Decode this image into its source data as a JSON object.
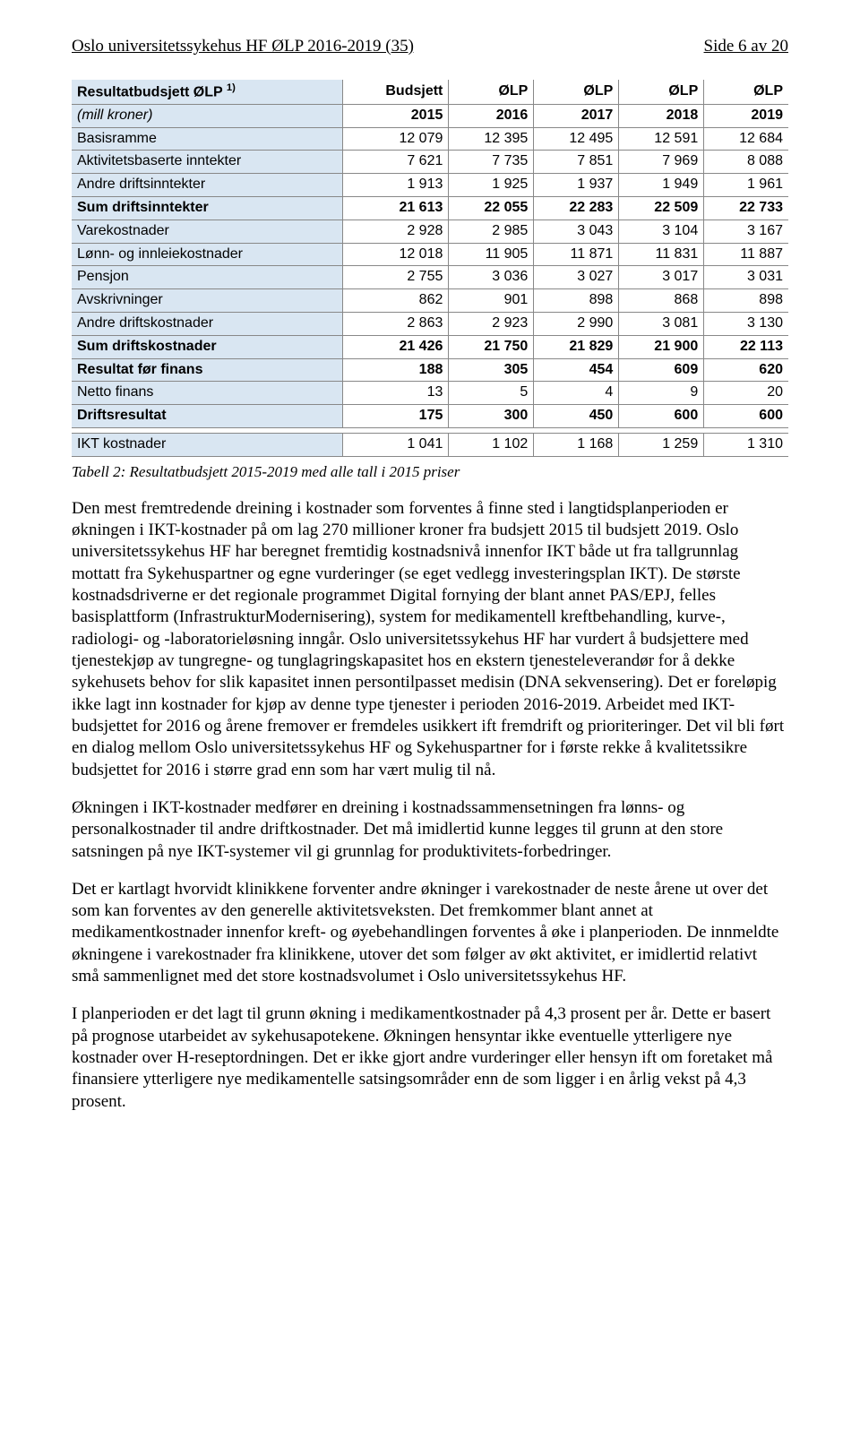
{
  "header": {
    "left": "Oslo universitetssykehus HF ØLP 2016-2019 (35)",
    "right": "Side 6 av 20"
  },
  "table": {
    "title_row": {
      "label_line1": "Resultatbudsjett ØLP ",
      "label_sup": "1)",
      "label_line2": "(mill kroner)",
      "col_labels_top": [
        "Budsjett",
        "ØLP",
        "ØLP",
        "ØLP",
        "ØLP"
      ],
      "col_labels_bottom": [
        "2015",
        "2016",
        "2017",
        "2018",
        "2019"
      ]
    },
    "rows": [
      {
        "label": "Basisramme",
        "vals": [
          "12 079",
          "12 395",
          "12 495",
          "12 591",
          "12 684"
        ],
        "bold": false,
        "shaded": true
      },
      {
        "label": "Aktivitetsbaserte inntekter",
        "vals": [
          "7 621",
          "7 735",
          "7 851",
          "7 969",
          "8 088"
        ],
        "bold": false,
        "shaded": true
      },
      {
        "label": "Andre driftsinntekter",
        "vals": [
          "1 913",
          "1 925",
          "1 937",
          "1 949",
          "1 961"
        ],
        "bold": false,
        "shaded": true
      },
      {
        "label": "Sum driftsinntekter",
        "vals": [
          "21 613",
          "22 055",
          "22 283",
          "22 509",
          "22 733"
        ],
        "bold": true,
        "shaded": true
      },
      {
        "label": "Varekostnader",
        "vals": [
          "2 928",
          "2 985",
          "3 043",
          "3 104",
          "3 167"
        ],
        "bold": false,
        "shaded": true
      },
      {
        "label": "Lønn- og innleiekostnader",
        "vals": [
          "12 018",
          "11 905",
          "11 871",
          "11 831",
          "11 887"
        ],
        "bold": false,
        "shaded": true
      },
      {
        "label": "Pensjon",
        "vals": [
          "2 755",
          "3 036",
          "3 027",
          "3 017",
          "3 031"
        ],
        "bold": false,
        "shaded": true
      },
      {
        "label": "Avskrivninger",
        "vals": [
          "862",
          "901",
          "898",
          "868",
          "898"
        ],
        "bold": false,
        "shaded": true
      },
      {
        "label": "Andre driftskostnader",
        "vals": [
          "2 863",
          "2 923",
          "2 990",
          "3 081",
          "3 130"
        ],
        "bold": false,
        "shaded": true
      },
      {
        "label": "Sum driftskostnader",
        "vals": [
          "21 426",
          "21 750",
          "21 829",
          "21 900",
          "22 113"
        ],
        "bold": true,
        "shaded": true
      },
      {
        "label": "Resultat før finans",
        "vals": [
          "188",
          "305",
          "454",
          "609",
          "620"
        ],
        "bold": true,
        "shaded": true
      },
      {
        "label": "Netto finans",
        "vals": [
          "13",
          "5",
          "4",
          "9",
          "20"
        ],
        "bold": false,
        "shaded": true
      },
      {
        "label": "Driftsresultat",
        "vals": [
          "175",
          "300",
          "450",
          "600",
          "600"
        ],
        "bold": true,
        "shaded": true
      }
    ],
    "footer_row": {
      "label": "IKT kostnader",
      "vals": [
        "1 041",
        "1 102",
        "1 168",
        "1 259",
        "1 310"
      ],
      "bold": false,
      "shaded": true
    }
  },
  "caption": "Tabell 2: Resultatbudsjett 2015-2019 med alle tall i 2015 priser",
  "paragraphs": [
    "Den mest fremtredende dreining i kostnader som forventes å finne sted i langtidsplanperioden er økningen i IKT-kostnader på om lag 270 millioner kroner fra budsjett 2015 til budsjett 2019. Oslo universitetssykehus HF har beregnet fremtidig kostnadsnivå innenfor IKT både ut fra tallgrunnlag mottatt fra Sykehuspartner og egne vurderinger (se eget vedlegg investeringsplan IKT). De største kostnadsdriverne er det regionale programmet Digital fornying der blant annet PAS/EPJ, felles basisplattform (InfrastrukturModernisering), system for medikamentell kreftbehandling, kurve-, radiologi- og -laboratorieløsning inngår. Oslo universitetssykehus HF har vurdert å budsjettere med tjenestekjøp av tungregne- og tunglagringskapasitet hos en ekstern tjenesteleverandør for å dekke sykehusets behov for slik kapasitet innen persontilpasset medisin (DNA sekvensering). Det er foreløpig ikke lagt inn kostnader for kjøp av denne type tjenester i perioden 2016-2019. Arbeidet med IKT- budsjettet for 2016 og årene fremover er fremdeles usikkert ift fremdrift og prioriteringer. Det vil bli ført en dialog mellom Oslo universitetssykehus HF og Sykehuspartner for i første rekke å kvalitetssikre budsjettet for 2016 i større grad enn som har vært mulig til nå.",
    "Økningen i IKT-kostnader medfører en dreining i kostnadssammensetningen fra lønns- og personalkostnader til andre driftkostnader. Det må imidlertid kunne legges til grunn at den store satsningen på nye IKT-systemer vil gi grunnlag for produktivitets-forbedringer.",
    "Det er kartlagt hvorvidt klinikkene forventer andre økninger i varekostnader de neste årene ut over det som kan forventes av den generelle aktivitetsveksten. Det fremkommer blant annet at medikamentkostnader innenfor kreft- og øyebehandlingen forventes å øke i planperioden. De innmeldte økningene i varekostnader fra klinikkene, utover det som følger av økt aktivitet, er imidlertid relativt små sammenlignet med det store kostnadsvolumet i Oslo universitetssykehus HF.",
    "I planperioden er det lagt til grunn økning i medikamentkostnader på 4,3 prosent per år. Dette er basert på prognose utarbeidet av sykehusapotekene. Økningen hensyntar ikke eventuelle ytterligere nye kostnader over H-reseptordningen. Det er ikke gjort andre vurderinger eller hensyn ift om foretaket må finansiere ytterligere nye medikamentelle satsingsområder enn de som ligger i en årlig vekst på 4,3 prosent."
  ],
  "colors": {
    "shaded_bg": "#d9e6f2",
    "border": "#888888",
    "text": "#000000",
    "background": "#ffffff"
  }
}
